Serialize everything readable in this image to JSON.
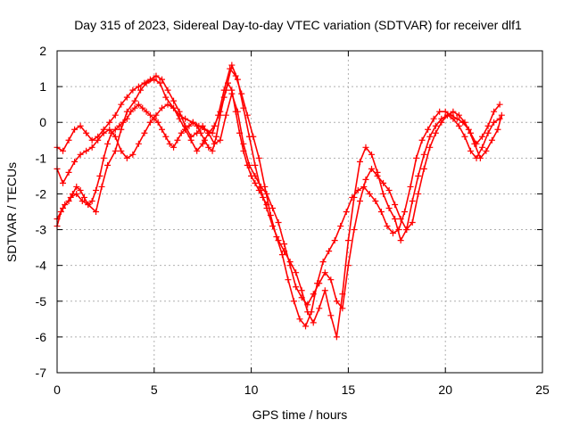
{
  "chart_data": {
    "type": "scatter",
    "title": "Day 315 of 2023, Sidereal Day-to-day VTEC variation (SDTVAR) for receiver dlf1",
    "xlabel": "GPS time / hours",
    "ylabel": "SDTVAR / TECUs",
    "xlim": [
      0,
      25
    ],
    "ylim": [
      -7,
      2
    ],
    "xticks": [
      0,
      5,
      10,
      15,
      20,
      25
    ],
    "yticks": [
      -7,
      -6,
      -5,
      -4,
      -3,
      -2,
      -1,
      0,
      1,
      2
    ],
    "grid": true,
    "legend": "none",
    "marker": "plus",
    "color": "#ff0000",
    "series": [
      {
        "x": [
          0.0,
          0.3,
          0.7,
          1.0,
          1.3,
          1.6,
          2.0,
          2.3,
          2.6,
          3.0,
          3.3,
          3.6,
          4.0,
          4.3,
          4.6,
          5.0,
          5.3,
          5.6,
          6.0,
          6.3,
          6.6,
          7.0,
          7.3,
          7.6,
          8.0,
          8.3,
          8.6,
          8.9,
          9.2,
          9.5,
          9.8,
          10.1,
          10.4,
          10.7,
          11.0,
          11.3,
          11.6,
          11.9,
          12.2,
          12.5,
          12.8,
          13.1,
          13.4,
          13.7,
          14.0,
          14.3,
          14.6,
          14.9,
          15.2,
          15.5,
          15.8,
          16.1,
          16.4,
          16.7,
          17.0,
          17.3,
          17.6,
          17.9,
          18.2,
          18.5,
          18.8,
          19.1,
          19.4,
          19.7,
          20.0,
          20.3,
          20.6,
          20.9,
          21.2,
          21.5,
          21.8,
          22.1,
          22.4,
          22.7,
          22.9
        ],
        "y": [
          -2.7,
          -2.4,
          -2.1,
          -2.0,
          -2.2,
          -2.3,
          -2.5,
          -1.8,
          -1.2,
          -0.8,
          -0.2,
          0.3,
          0.6,
          0.9,
          1.1,
          1.2,
          1.1,
          0.7,
          0.4,
          0.2,
          0.1,
          0.0,
          -0.1,
          -0.2,
          -0.3,
          0.2,
          0.9,
          1.5,
          1.3,
          0.8,
          0.2,
          -0.4,
          -1.0,
          -1.8,
          -2.6,
          -3.2,
          -3.7,
          -4.4,
          -5.0,
          -5.5,
          -5.7,
          -5.3,
          -4.5,
          -3.9,
          -3.6,
          -3.3,
          -2.9,
          -2.5,
          -2.1,
          -1.9,
          -1.8,
          -2.0,
          -2.2,
          -2.5,
          -2.9,
          -3.1,
          -3.0,
          -2.5,
          -1.8,
          -1.0,
          -0.5,
          -0.2,
          0.1,
          0.3,
          0.3,
          0.2,
          0.1,
          0.0,
          -0.2,
          -0.6,
          -1.0,
          -0.8,
          -0.5,
          -0.2,
          0.2
        ]
      },
      {
        "x": [
          0.0,
          0.3,
          0.6,
          0.9,
          1.2,
          1.5,
          1.8,
          2.1,
          2.4,
          2.7,
          3.0,
          3.3,
          3.6,
          3.9,
          4.2,
          4.5,
          4.8,
          5.1,
          5.4,
          5.7,
          6.0,
          6.3,
          6.6,
          6.9,
          7.2,
          7.5,
          7.8,
          8.1,
          8.4,
          8.7,
          9.0,
          9.3,
          9.6,
          9.9,
          10.2,
          10.5,
          10.8,
          11.1,
          11.4,
          11.7,
          12.0,
          12.3,
          12.6,
          12.9,
          13.2,
          13.5,
          13.8,
          14.1,
          14.4,
          14.7,
          15.0,
          15.3,
          15.6,
          15.9,
          16.2,
          16.5,
          16.8,
          17.1,
          17.4,
          17.7,
          18.0,
          18.3,
          18.6,
          18.9,
          19.2,
          19.5,
          19.8,
          20.1,
          20.4,
          20.7,
          21.0,
          21.3,
          21.6,
          21.9,
          22.2,
          22.5,
          22.8
        ],
        "y": [
          -0.7,
          -0.8,
          -0.5,
          -0.2,
          -0.1,
          -0.3,
          -0.5,
          -0.4,
          -0.2,
          0.0,
          0.2,
          0.5,
          0.7,
          0.9,
          1.0,
          1.1,
          1.2,
          1.3,
          1.2,
          0.9,
          0.6,
          0.3,
          -0.1,
          -0.4,
          -0.3,
          -0.1,
          -0.3,
          -0.6,
          -0.5,
          0.2,
          0.8,
          0.3,
          -0.6,
          -1.2,
          -1.5,
          -1.8,
          -2.0,
          -2.4,
          -2.8,
          -3.4,
          -4.0,
          -4.6,
          -4.9,
          -5.1,
          -4.8,
          -4.5,
          -4.2,
          -4.4,
          -5.0,
          -5.2,
          -4.0,
          -3.0,
          -2.2,
          -1.6,
          -1.3,
          -1.5,
          -1.7,
          -1.9,
          -2.3,
          -2.7,
          -3.0,
          -2.8,
          -2.0,
          -1.3,
          -0.7,
          -0.3,
          0.0,
          0.2,
          0.3,
          0.2,
          0.0,
          -0.3,
          -0.6,
          -0.4,
          -0.1,
          0.3,
          0.5
        ]
      },
      {
        "x": [
          0.0,
          0.3,
          0.6,
          0.9,
          1.2,
          1.5,
          1.8,
          2.1,
          2.4,
          2.7,
          3.0,
          3.3,
          3.6,
          3.9,
          4.2,
          4.5,
          4.8,
          5.1,
          5.4,
          5.7,
          6.0,
          6.3,
          6.6,
          6.9,
          7.2,
          7.5,
          7.8,
          8.1,
          8.4,
          8.7,
          9.0,
          9.3,
          9.6,
          9.9,
          10.2,
          10.5,
          10.8,
          11.1,
          11.4,
          11.7,
          12.0,
          12.3,
          12.6,
          12.9,
          13.2,
          13.5,
          13.8,
          14.1,
          14.4,
          14.7,
          15.0,
          15.3,
          15.6,
          15.9,
          16.2,
          16.5,
          16.8,
          17.1,
          17.4,
          17.7,
          18.0,
          18.3,
          18.6,
          18.9,
          19.2,
          19.5,
          19.8,
          20.1,
          20.4,
          20.7,
          21.0,
          21.3,
          21.6,
          21.9,
          22.2,
          22.5,
          22.8
        ],
        "y": [
          -1.3,
          -1.7,
          -1.4,
          -1.1,
          -0.9,
          -0.8,
          -0.7,
          -0.5,
          -0.3,
          -0.2,
          -0.4,
          -0.8,
          -1.0,
          -0.9,
          -0.6,
          -0.3,
          0.0,
          0.2,
          0.4,
          0.5,
          0.4,
          0.1,
          -0.2,
          -0.5,
          -0.8,
          -0.6,
          -0.3,
          -0.1,
          0.3,
          0.9,
          1.6,
          1.2,
          0.4,
          -0.4,
          -1.2,
          -1.9,
          -2.4,
          -2.9,
          -3.3,
          -3.6,
          -3.9,
          -4.2,
          -4.7,
          -5.3,
          -5.6,
          -5.2,
          -4.7,
          -5.4,
          -6.0,
          -4.8,
          -3.3,
          -2.1,
          -1.1,
          -0.7,
          -0.9,
          -1.4,
          -2.0,
          -2.4,
          -2.7,
          -3.3,
          -3.0,
          -2.2,
          -1.5,
          -0.9,
          -0.4,
          -0.1,
          0.1,
          0.2,
          0.1,
          -0.1,
          -0.4,
          -0.8,
          -1.0,
          -0.7,
          -0.3,
          0.0,
          0.1
        ]
      },
      {
        "x": [
          0.0,
          0.2,
          0.4,
          0.6,
          0.8,
          1.0,
          1.2,
          1.4,
          1.6,
          1.8,
          2.0,
          2.2,
          2.4,
          2.6,
          2.8,
          3.0,
          3.2,
          3.4,
          3.6,
          3.8,
          4.0,
          4.2,
          4.4,
          4.6,
          4.8,
          5.0,
          5.2,
          5.4,
          5.6,
          5.8,
          6.0,
          6.2,
          6.4,
          6.6,
          6.8,
          7.0,
          7.2,
          7.4,
          7.6,
          7.8,
          8.0,
          8.2,
          8.4,
          8.6,
          8.8,
          9.0,
          9.2,
          9.4,
          9.6,
          9.8,
          10.0,
          10.2,
          10.4,
          10.6,
          10.8
        ],
        "y": [
          -2.9,
          -2.5,
          -2.3,
          -2.2,
          -2.0,
          -1.8,
          -1.9,
          -2.1,
          -2.3,
          -2.2,
          -1.9,
          -1.5,
          -1.0,
          -0.6,
          -0.3,
          -0.2,
          -0.1,
          0.0,
          0.1,
          0.3,
          0.4,
          0.5,
          0.4,
          0.3,
          0.2,
          0.1,
          0.0,
          -0.2,
          -0.4,
          -0.6,
          -0.7,
          -0.5,
          -0.3,
          -0.2,
          -0.1,
          0.0,
          -0.1,
          -0.3,
          -0.5,
          -0.7,
          -0.8,
          -0.4,
          0.2,
          0.7,
          1.1,
          0.9,
          0.3,
          -0.3,
          -0.8,
          -1.2,
          -1.5,
          -1.7,
          -1.9,
          -2.1,
          -2.3
        ]
      }
    ]
  }
}
